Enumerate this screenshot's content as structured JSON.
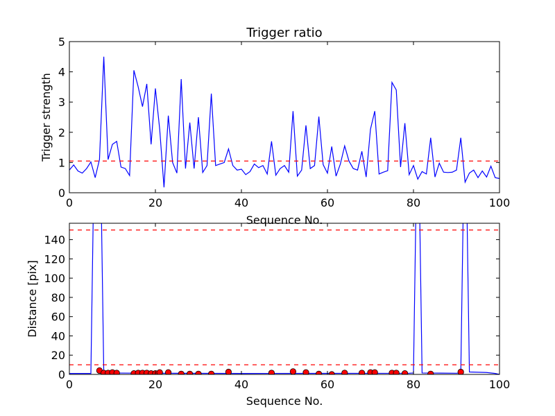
{
  "chart_data": [
    {
      "type": "line",
      "title": "Trigger ratio",
      "xlabel": "Sequence No.",
      "ylabel": "Trigger strength",
      "xlim": [
        0,
        100
      ],
      "ylim": [
        0,
        5
      ],
      "xticks": [
        0,
        20,
        40,
        60,
        80,
        100
      ],
      "yticks": [
        0,
        1,
        2,
        3,
        4,
        5
      ],
      "grid": false,
      "series": [
        {
          "color": "#0000ff",
          "style": "solid",
          "x": [
            0,
            1,
            2,
            3,
            4,
            5,
            6,
            7,
            8,
            9,
            10,
            11,
            12,
            13,
            14,
            15,
            16,
            17,
            18,
            19,
            20,
            21,
            22,
            23,
            24,
            25,
            26,
            27,
            28,
            29,
            30,
            31,
            32,
            33,
            34,
            35,
            36,
            37,
            38,
            39,
            40,
            41,
            42,
            43,
            44,
            45,
            46,
            47,
            48,
            49,
            50,
            51,
            52,
            53,
            54,
            55,
            56,
            57,
            58,
            59,
            60,
            61,
            62,
            63,
            64,
            65,
            66,
            67,
            68,
            69,
            70,
            71,
            72,
            73,
            74,
            75,
            76,
            77,
            78,
            79,
            80,
            81,
            82,
            83,
            84,
            85,
            86,
            87,
            88,
            89,
            90,
            91,
            92,
            93,
            94,
            95,
            96,
            97,
            98,
            99,
            100
          ],
          "y": [
            0.75,
            0.92,
            0.72,
            0.65,
            0.8,
            1.02,
            0.5,
            1.1,
            4.5,
            1.1,
            1.6,
            1.7,
            0.85,
            0.8,
            0.57,
            4.05,
            3.5,
            2.85,
            3.6,
            1.6,
            3.45,
            2.1,
            0.18,
            2.55,
            1.0,
            0.65,
            3.76,
            0.8,
            2.32,
            0.8,
            2.5,
            0.67,
            0.9,
            3.28,
            0.9,
            0.95,
            1.0,
            1.45,
            0.9,
            0.75,
            0.78,
            0.6,
            0.7,
            0.95,
            0.83,
            0.9,
            0.62,
            1.7,
            0.58,
            0.8,
            0.9,
            0.68,
            2.7,
            0.55,
            0.75,
            2.23,
            0.8,
            0.9,
            2.52,
            0.93,
            0.65,
            1.53,
            0.55,
            0.95,
            1.55,
            1.05,
            0.8,
            0.75,
            1.37,
            0.52,
            2.1,
            2.7,
            0.62,
            0.68,
            0.73,
            3.65,
            3.4,
            0.85,
            2.3,
            0.6,
            0.9,
            0.45,
            0.7,
            0.62,
            1.82,
            0.52,
            0.98,
            0.68,
            0.67,
            0.68,
            0.75,
            1.82,
            0.35,
            0.65,
            0.75,
            0.5,
            0.72,
            0.52,
            0.88,
            0.5,
            0.47
          ]
        },
        {
          "color": "#ff0000",
          "style": "dashed",
          "x": [
            0,
            100
          ],
          "y": [
            1.05,
            1.05
          ]
        }
      ]
    },
    {
      "type": "line",
      "title": "",
      "xlabel": "Sequence No.",
      "ylabel": "Distance [pix]",
      "xlim": [
        0,
        100
      ],
      "ylim": [
        0,
        157
      ],
      "xticks": [
        0,
        20,
        40,
        60,
        80,
        100
      ],
      "yticks": [
        0,
        20,
        40,
        60,
        80,
        100,
        120,
        140
      ],
      "grid": false,
      "series": [
        {
          "color": "#0000ff",
          "style": "solid",
          "x": [
            0,
            5,
            6,
            7,
            8,
            20,
            40,
            60,
            79,
            80,
            81,
            82,
            90,
            91,
            92,
            93,
            97,
            99,
            100
          ],
          "y": [
            1,
            1,
            300,
            300,
            1.5,
            1.2,
            1,
            1.1,
            1.2,
            1.5,
            300,
            1.5,
            1.2,
            1.5,
            300,
            2.5,
            2,
            1,
            0
          ]
        },
        {
          "color": "#ff0000",
          "style": "dashed",
          "x": [
            0,
            100
          ],
          "y": [
            150,
            150
          ]
        },
        {
          "color": "#ff0000",
          "style": "dashed",
          "x": [
            0,
            100
          ],
          "y": [
            10,
            10
          ]
        },
        {
          "type": "scatter",
          "color": "#ff0000",
          "x": [
            7,
            8,
            9,
            10,
            11,
            15,
            16,
            17,
            18,
            19,
            20,
            21,
            23,
            26,
            28,
            30,
            33,
            37,
            47,
            52,
            55,
            58,
            61,
            64,
            68,
            70,
            71,
            75,
            76,
            78,
            84,
            91
          ],
          "y": [
            4,
            1.5,
            1.5,
            2,
            1.5,
            1,
            1.5,
            1.5,
            1.5,
            1,
            1,
            2,
            2,
            0.5,
            0.5,
            0.5,
            0.5,
            2.5,
            1.5,
            3,
            2,
            0.5,
            0,
            1.5,
            1.5,
            2,
            2,
            1.5,
            1.5,
            1,
            0.5,
            2.5
          ]
        }
      ]
    }
  ]
}
